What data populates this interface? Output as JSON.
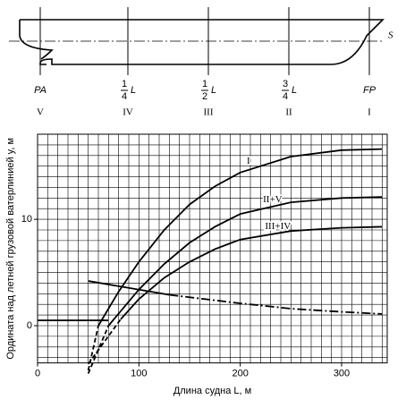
{
  "ship": {
    "waterline_label": "S",
    "stations": [
      {
        "label": "PA",
        "roman": "V"
      },
      {
        "numerator": "1",
        "denominator": "4",
        "suffix": "L",
        "roman": "IV"
      },
      {
        "numerator": "1",
        "denominator": "2",
        "suffix": "L",
        "roman": "III"
      },
      {
        "numerator": "3",
        "denominator": "4",
        "suffix": "L",
        "roman": "II"
      },
      {
        "label": "FP",
        "roman": "I"
      }
    ]
  },
  "chart_data": {
    "type": "line",
    "xlabel": "Длина судна L, м",
    "ylabel": "Ордината над летней грузовой ватерлинией y, м",
    "xlim": [
      0,
      345
    ],
    "ylim": [
      -3.5,
      18
    ],
    "xticks": [
      0,
      100,
      200,
      300
    ],
    "yticks": [
      0,
      10
    ],
    "grid": true,
    "xgrid_step": 10,
    "ygrid_step": 1,
    "series": [
      {
        "name": "I",
        "color": "#000000",
        "style": "solid",
        "x": [
          60,
          80,
          100,
          125,
          150,
          175,
          200,
          250,
          300,
          340
        ],
        "values": [
          0,
          3.2,
          6,
          9,
          11.4,
          13.1,
          14.4,
          15.9,
          16.5,
          16.6
        ]
      },
      {
        "color": "#000000",
        "style": "dashed",
        "x": [
          50,
          60
        ],
        "values": [
          -4.2,
          0
        ]
      },
      {
        "name": "II+V",
        "color": "#000000",
        "style": "solid",
        "x": [
          70,
          100,
          125,
          150,
          175,
          200,
          250,
          300,
          340
        ],
        "values": [
          0,
          3.4,
          5.8,
          7.8,
          9.3,
          10.5,
          11.6,
          12,
          12.1
        ]
      },
      {
        "color": "#000000",
        "style": "dashed",
        "x": [
          50,
          70
        ],
        "values": [
          -4.5,
          0
        ]
      },
      {
        "name": "III+IV",
        "color": "#000000",
        "style": "solid",
        "x": [
          82,
          100,
          125,
          150,
          175,
          200,
          250,
          300,
          340
        ],
        "values": [
          0.6,
          2.5,
          4.5,
          6,
          7.2,
          8.1,
          8.9,
          9.2,
          9.3
        ]
      },
      {
        "color": "#000000",
        "style": "dashed",
        "x": [
          50,
          82
        ],
        "values": [
          -3.6,
          0.6
        ]
      },
      {
        "color": "#000000",
        "style": "solid",
        "x": [
          0,
          70
        ],
        "values": [
          0.5,
          0.5
        ]
      },
      {
        "color": "#000000",
        "style": "solid",
        "x": [
          50,
          130
        ],
        "values": [
          4.2,
          2.9
        ]
      },
      {
        "color": "#000000",
        "style": "dashdot",
        "x": [
          130,
          200,
          250,
          300,
          340
        ],
        "values": [
          2.9,
          2.1,
          1.6,
          1.3,
          1.1
        ]
      }
    ]
  }
}
